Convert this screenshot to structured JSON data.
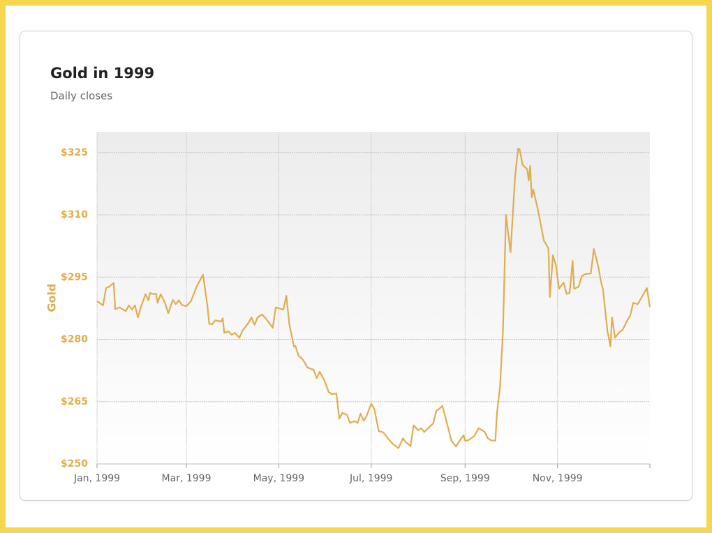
{
  "chart_data": {
    "type": "line",
    "title": "Gold in 1999",
    "subtitle": "Daily closes",
    "y_label": "Gold",
    "color": "#e0ad4f",
    "grid": true,
    "xlim": [
      0,
      365
    ],
    "xticks": [
      {
        "value": 0,
        "label": "Jan, 1999"
      },
      {
        "value": 59,
        "label": "Mar, 1999"
      },
      {
        "value": 120,
        "label": "May, 1999"
      },
      {
        "value": 181,
        "label": "Jul, 1999"
      },
      {
        "value": 243,
        "label": "Sep, 1999"
      },
      {
        "value": 304,
        "label": "Nov, 1999"
      }
    ],
    "ylim": [
      250,
      330
    ],
    "yticks": [
      {
        "value": 250,
        "label": "$250"
      },
      {
        "value": 265,
        "label": "$265"
      },
      {
        "value": 280,
        "label": "$280"
      },
      {
        "value": 295,
        "label": "$295"
      },
      {
        "value": 310,
        "label": "$310"
      },
      {
        "value": 325,
        "label": "$325"
      }
    ],
    "x": [
      0,
      4,
      6,
      8,
      11,
      12,
      15,
      19,
      21,
      23,
      25,
      27,
      29,
      32,
      34,
      35,
      37,
      39,
      40,
      42,
      45,
      47,
      50,
      52,
      54,
      56,
      59,
      62,
      66,
      70,
      73,
      74,
      76,
      78,
      82,
      83,
      84,
      87,
      89,
      91,
      94,
      96,
      100,
      102,
      104,
      106,
      109,
      112,
      116,
      118,
      123,
      125,
      127,
      130,
      131,
      133,
      136,
      139,
      143,
      145,
      147,
      150,
      153,
      155,
      158,
      160,
      162,
      165,
      167,
      170,
      172,
      174,
      176,
      178,
      181,
      183,
      186,
      189,
      192,
      195,
      199,
      202,
      204,
      207,
      209,
      212,
      214,
      216,
      220,
      222,
      224,
      226,
      228,
      230,
      234,
      237,
      239,
      242,
      243,
      245,
      249,
      252,
      256,
      258,
      260,
      263,
      264,
      266,
      268,
      270,
      273,
      276,
      278,
      279,
      281,
      284,
      285,
      286,
      287,
      288,
      291,
      295,
      298,
      299,
      301,
      303,
      305,
      308,
      310,
      312,
      314,
      315,
      318,
      320,
      322,
      326,
      328,
      331,
      333,
      334,
      337,
      339,
      340,
      342,
      345,
      347,
      350,
      352,
      354,
      357,
      360,
      363,
      365
    ],
    "values": [
      289.2,
      288.2,
      292.4,
      292.7,
      293.6,
      287.3,
      287.7,
      286.8,
      288.2,
      287.2,
      288.2,
      285.3,
      287.8,
      290.9,
      289.4,
      291.2,
      290.9,
      291.0,
      288.8,
      290.9,
      288.7,
      286.3,
      289.5,
      288.5,
      289.4,
      288.3,
      288.0,
      289.2,
      292.9,
      295.6,
      287.8,
      283.8,
      283.6,
      284.6,
      284.3,
      285.1,
      281.6,
      281.9,
      281.1,
      281.6,
      280.4,
      282.1,
      284.0,
      285.3,
      283.5,
      285.3,
      286.0,
      284.8,
      282.8,
      287.7,
      287.2,
      290.5,
      283.6,
      278.3,
      278.4,
      276.1,
      275.1,
      273.2,
      272.7,
      270.7,
      272.2,
      270.2,
      267.3,
      266.8,
      267.0,
      260.9,
      262.3,
      261.8,
      259.9,
      260.3,
      259.9,
      262.1,
      260.4,
      261.6,
      264.5,
      263.3,
      257.9,
      257.6,
      256.2,
      254.9,
      253.8,
      256.2,
      255.2,
      254.3,
      259.3,
      258.1,
      258.6,
      257.7,
      259.1,
      259.8,
      262.8,
      263.3,
      264.0,
      261.3,
      255.6,
      254.2,
      255.4,
      256.9,
      255.6,
      255.7,
      256.7,
      258.6,
      257.7,
      256.2,
      255.7,
      255.6,
      262.1,
      268.3,
      281.9,
      310.0,
      301.0,
      319.1,
      326.0,
      325.8,
      322.0,
      321.0,
      318.3,
      321.8,
      314.2,
      316.1,
      311.4,
      303.8,
      302.0,
      290.2,
      300.3,
      297.8,
      292.2,
      293.7,
      291.0,
      291.2,
      298.9,
      292.2,
      292.7,
      295.2,
      295.7,
      295.9,
      301.8,
      297.4,
      293.4,
      292.2,
      282.0,
      278.3,
      285.3,
      280.4,
      281.8,
      282.3,
      284.5,
      285.7,
      288.8,
      288.5,
      290.4,
      292.4,
      287.8
    ]
  }
}
